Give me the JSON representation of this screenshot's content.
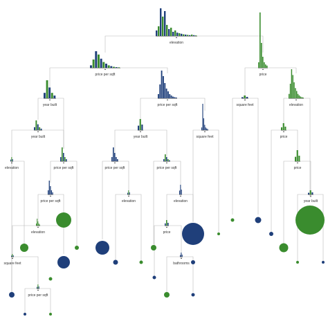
{
  "colors": {
    "blue": "#1f3f7a",
    "green": "#3a8c2e",
    "edge": "#b8b8b8"
  },
  "tree": {
    "splits": [
      {
        "id": "elevation_root",
        "label": "elevation"
      },
      {
        "id": "price_per_sqft_l1",
        "label": "price per sqft"
      },
      {
        "id": "price_l1",
        "label": "price"
      },
      {
        "id": "year_built_l2",
        "label": "year built"
      },
      {
        "id": "price_per_sqft_l2",
        "label": "price per sqft"
      },
      {
        "id": "square_feet_l2",
        "label": "square feet"
      },
      {
        "id": "elevation_l2",
        "label": "elevation"
      },
      {
        "id": "year_built_l3",
        "label": "year built"
      },
      {
        "id": "year_built_l3b",
        "label": "year built"
      },
      {
        "id": "square_feet_l3",
        "label": "square feet"
      },
      {
        "id": "price_l3",
        "label": "price"
      },
      {
        "id": "elevation_l4",
        "label": "elevation"
      },
      {
        "id": "price_per_sqft_l4a",
        "label": "price per sqft"
      },
      {
        "id": "price_per_sqft_l4b",
        "label": "price per sqft"
      },
      {
        "id": "price_per_sqft_l4c",
        "label": "price per sqft"
      },
      {
        "id": "price_l4",
        "label": "price"
      },
      {
        "id": "price_per_sqft_l5",
        "label": "price per sqft"
      },
      {
        "id": "elevation_l5a",
        "label": "elevation"
      },
      {
        "id": "elevation_l5b",
        "label": "elevation"
      },
      {
        "id": "year_built_l5",
        "label": "year built"
      },
      {
        "id": "elevation_l6",
        "label": "elevation"
      },
      {
        "id": "price_l6",
        "label": "price"
      },
      {
        "id": "square_feet_l7",
        "label": "square feet"
      },
      {
        "id": "bathrooms_l7",
        "label": "bathrooms"
      },
      {
        "id": "price_per_sqft_l8",
        "label": "price per sqft"
      }
    ]
  }
}
